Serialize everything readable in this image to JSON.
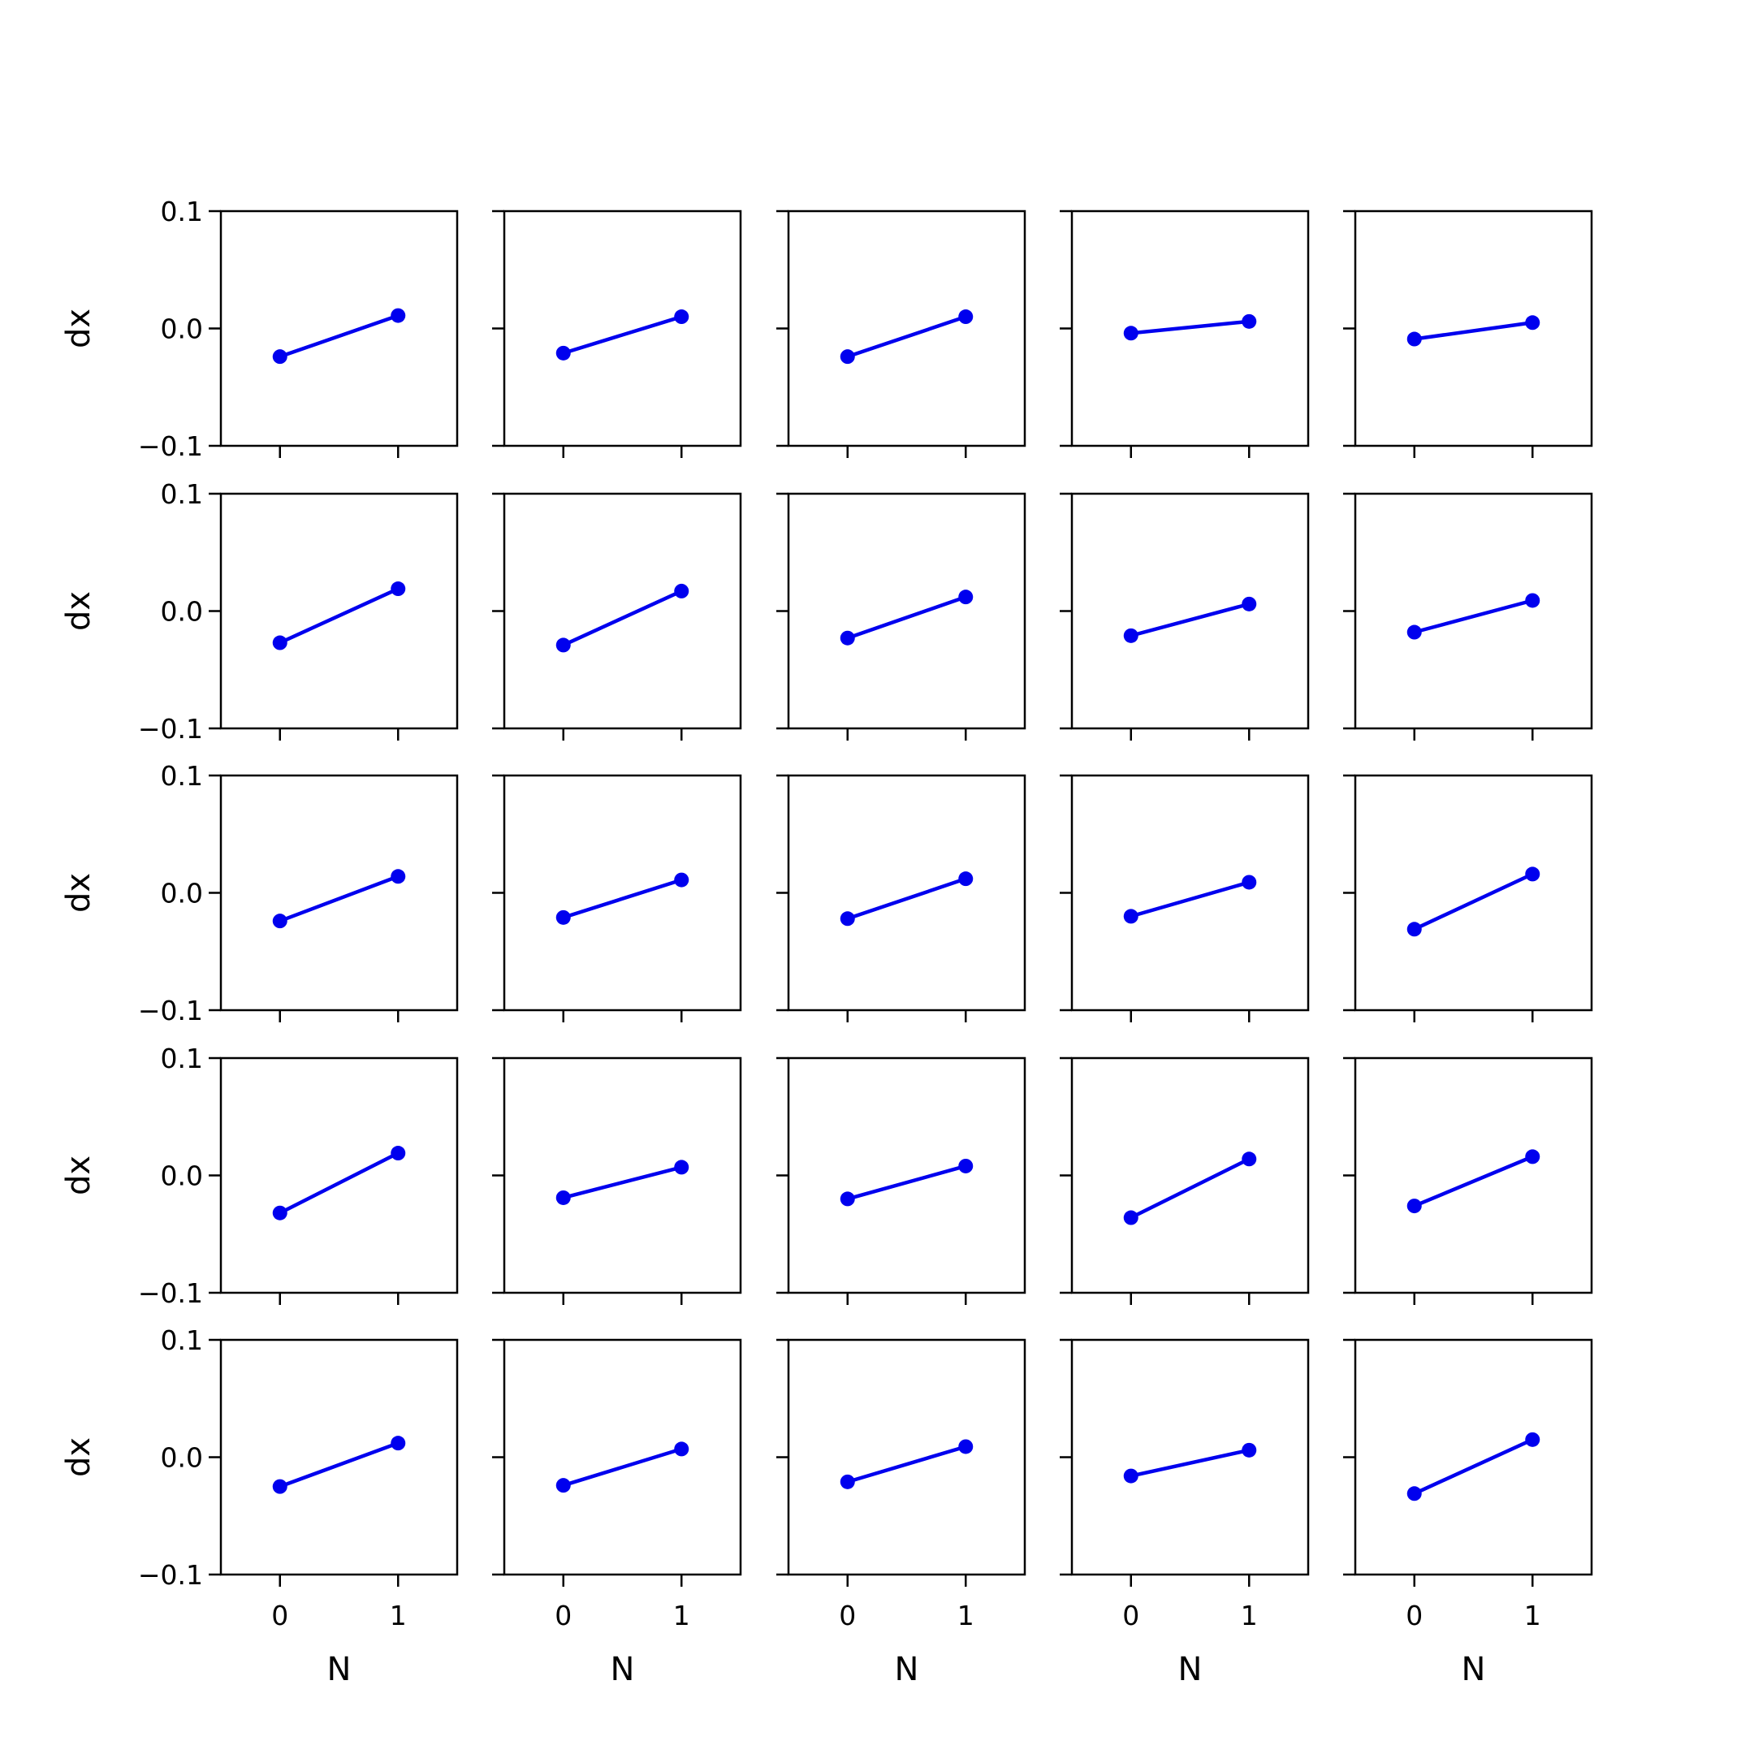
{
  "chart_data": {
    "type": "line",
    "layout": "grid",
    "rows": 5,
    "cols": 5,
    "xlabel": "N",
    "ylabel": "dx",
    "x": [
      0,
      1
    ],
    "xlim": [
      -0.5,
      1.5
    ],
    "ylim": [
      -0.1,
      0.1
    ],
    "xticks": [
      "0",
      "1"
    ],
    "yticks": [
      "0.1",
      "0.0",
      "−0.1"
    ],
    "line_color": "#0000ee",
    "marker": "circle",
    "grid": false,
    "legend": "none",
    "panels": [
      [
        {
          "values": [
            -0.024,
            0.011
          ]
        },
        {
          "values": [
            -0.021,
            0.01
          ]
        },
        {
          "values": [
            -0.024,
            0.01
          ]
        },
        {
          "values": [
            -0.004,
            0.006
          ]
        },
        {
          "values": [
            -0.009,
            0.005
          ]
        }
      ],
      [
        {
          "values": [
            -0.027,
            0.019
          ]
        },
        {
          "values": [
            -0.029,
            0.017
          ]
        },
        {
          "values": [
            -0.023,
            0.012
          ]
        },
        {
          "values": [
            -0.021,
            0.006
          ]
        },
        {
          "values": [
            -0.018,
            0.009
          ]
        }
      ],
      [
        {
          "values": [
            -0.024,
            0.014
          ]
        },
        {
          "values": [
            -0.021,
            0.011
          ]
        },
        {
          "values": [
            -0.022,
            0.012
          ]
        },
        {
          "values": [
            -0.02,
            0.009
          ]
        },
        {
          "values": [
            -0.031,
            0.016
          ]
        }
      ],
      [
        {
          "values": [
            -0.032,
            0.019
          ]
        },
        {
          "values": [
            -0.019,
            0.007
          ]
        },
        {
          "values": [
            -0.02,
            0.008
          ]
        },
        {
          "values": [
            -0.036,
            0.014
          ]
        },
        {
          "values": [
            -0.026,
            0.016
          ]
        }
      ],
      [
        {
          "values": [
            -0.025,
            0.012
          ]
        },
        {
          "values": [
            -0.024,
            0.007
          ]
        },
        {
          "values": [
            -0.021,
            0.009
          ]
        },
        {
          "values": [
            -0.016,
            0.006
          ]
        },
        {
          "values": [
            -0.031,
            0.015
          ]
        }
      ]
    ]
  }
}
